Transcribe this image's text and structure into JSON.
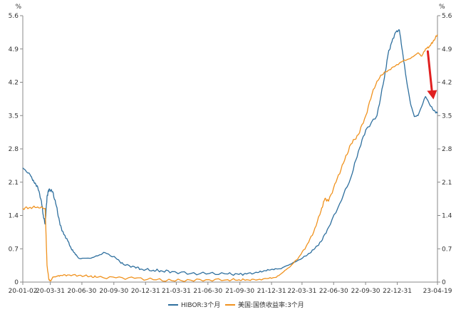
{
  "chart_data": {
    "type": "line",
    "y_unit_left": "%",
    "y_unit_right": "%",
    "ylim": [
      0,
      5.6
    ],
    "y_ticks": [
      "0",
      "0.7",
      "1.4",
      "2.1",
      "2.8",
      "3.5",
      "4.2",
      "4.9",
      "5.6"
    ],
    "y_tick_values": [
      0,
      0.7,
      1.4,
      2.1,
      2.8,
      3.5,
      4.2,
      4.9,
      5.6
    ],
    "x_ticks": [
      "20-01-02",
      "20-03-31",
      "20-06-30",
      "20-09-30",
      "20-12-31",
      "21-03-31",
      "21-06-30",
      "21-09-30",
      "21-12-31",
      "22-03-31",
      "22-06-30",
      "22-09-30",
      "22-12-31",
      "23-04-19"
    ],
    "x_tick_positions": [
      0,
      0.0737,
      0.1585,
      0.2442,
      0.3292,
      0.4117,
      0.4965,
      0.5822,
      0.6672,
      0.7489,
      0.8337,
      0.9194,
      1.0044,
      1.1122
    ],
    "xlim": [
      0,
      1.1122
    ],
    "series": [
      {
        "name": "HIBOR:3个月",
        "color": "#2e6f9e",
        "x": [
          0,
          0.02,
          0.03,
          0.04,
          0.05,
          0.055,
          0.06,
          0.065,
          0.07,
          0.08,
          0.09,
          0.1,
          0.11,
          0.12,
          0.13,
          0.14,
          0.15,
          0.18,
          0.2,
          0.22,
          0.25,
          0.27,
          0.3,
          0.32,
          0.35,
          0.37,
          0.4,
          0.45,
          0.5,
          0.55,
          0.58,
          0.6,
          0.63,
          0.65,
          0.67,
          0.69,
          0.71,
          0.73,
          0.76,
          0.78,
          0.8,
          0.82,
          0.85,
          0.88,
          0.9,
          0.92,
          0.95,
          0.97,
          0.98,
          0.99,
          1.0,
          1.01,
          1.02,
          1.03,
          1.04,
          1.05,
          1.06,
          1.08,
          1.1,
          1.112
        ],
        "values": [
          2.4,
          2.25,
          2.1,
          2.0,
          1.7,
          1.4,
          1.22,
          1.8,
          1.95,
          1.9,
          1.6,
          1.2,
          1.0,
          0.88,
          0.7,
          0.6,
          0.5,
          0.5,
          0.55,
          0.62,
          0.5,
          0.37,
          0.32,
          0.27,
          0.25,
          0.24,
          0.22,
          0.18,
          0.18,
          0.17,
          0.16,
          0.17,
          0.2,
          0.24,
          0.27,
          0.28,
          0.35,
          0.42,
          0.55,
          0.68,
          0.85,
          1.15,
          1.65,
          2.2,
          2.75,
          3.2,
          3.5,
          4.3,
          4.8,
          5.05,
          5.25,
          5.3,
          4.75,
          4.2,
          3.75,
          3.48,
          3.5,
          3.9,
          3.62,
          3.55
        ]
      },
      {
        "name": "美国:国债收益率:3个月",
        "color": "#f0921e",
        "x": [
          0,
          0.02,
          0.04,
          0.06,
          0.065,
          0.07,
          0.075,
          0.08,
          0.09,
          0.1,
          0.12,
          0.15,
          0.18,
          0.2,
          0.25,
          0.3,
          0.35,
          0.4,
          0.45,
          0.5,
          0.55,
          0.58,
          0.6,
          0.63,
          0.66,
          0.68,
          0.7,
          0.72,
          0.74,
          0.76,
          0.78,
          0.8,
          0.81,
          0.82,
          0.84,
          0.86,
          0.88,
          0.9,
          0.92,
          0.94,
          0.96,
          0.98,
          1.0,
          1.02,
          1.04,
          1.06,
          1.07,
          1.08,
          1.09,
          1.1,
          1.112
        ],
        "values": [
          1.55,
          1.57,
          1.58,
          1.55,
          0.35,
          0.05,
          0.02,
          0.1,
          0.12,
          0.14,
          0.15,
          0.14,
          0.12,
          0.1,
          0.09,
          0.08,
          0.05,
          0.03,
          0.04,
          0.05,
          0.05,
          0.05,
          0.05,
          0.05,
          0.08,
          0.1,
          0.22,
          0.35,
          0.52,
          0.75,
          1.05,
          1.5,
          1.75,
          1.7,
          2.1,
          2.5,
          2.9,
          3.1,
          3.5,
          4.05,
          4.35,
          4.45,
          4.55,
          4.65,
          4.7,
          4.82,
          4.75,
          4.9,
          4.95,
          5.05,
          5.2
        ]
      }
    ],
    "annotation": {
      "type": "arrow",
      "color": "#e02020",
      "direction": "down"
    },
    "legend_position": "bottom-center",
    "grid": false
  }
}
